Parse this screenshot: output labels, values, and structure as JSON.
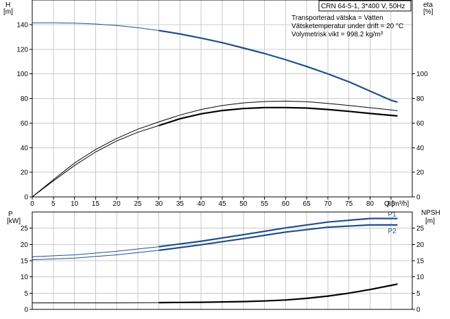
{
  "colors": {
    "blue": "#1f4e8c",
    "black": "#000000",
    "grid": "#c8c8c8"
  },
  "title_box": "CRN 64-5-1, 3*400 V, 50Hz",
  "conditions": [
    "Transporterad vätska = Vatten",
    "Vätsketemperatur under drift = 20 °C",
    "Volymetrisk vikt = 998.2 kg/m³"
  ],
  "chart_data": [
    {
      "type": "line",
      "panel": "upper",
      "xlabel": "Q [m³/h]",
      "ylabel_left": "H",
      "ylabel_left_unit": "[m]",
      "ylabel_right": "eta",
      "ylabel_right_unit": "[%]",
      "xlim": [
        0,
        90
      ],
      "ylim": [
        0,
        160
      ],
      "x_ticks": [
        0,
        5,
        10,
        15,
        20,
        25,
        30,
        35,
        40,
        45,
        50,
        55,
        60,
        65,
        70,
        75,
        80,
        85
      ],
      "y_ticks_left": [
        0,
        20,
        40,
        60,
        80,
        100,
        120,
        140
      ],
      "y_ticks_right": [
        0,
        20,
        40,
        60,
        80,
        100
      ],
      "grid": true,
      "series": [
        {
          "kind": "H",
          "color": "blue",
          "x": [
            0,
            5,
            10,
            15,
            20,
            25,
            30,
            35,
            40,
            45,
            50,
            55,
            60,
            65,
            70,
            75,
            80,
            85,
            86.5
          ],
          "values": [
            141.5,
            141.5,
            141.2,
            140.5,
            139.3,
            137.5,
            135.2,
            132.4,
            129.0,
            125.3,
            121.0,
            116.5,
            111.5,
            106.0,
            100.0,
            93.5,
            86.0,
            78.5,
            77.0
          ],
          "style": "thick",
          "start_thin_until": 30
        },
        {
          "kind": "eta",
          "color": "black",
          "x": [
            0,
            5,
            10,
            15,
            20,
            25,
            30,
            35,
            40,
            45,
            50,
            55,
            60,
            65,
            70,
            75,
            80,
            85,
            86.5
          ],
          "values": [
            0,
            14,
            27.5,
            38.5,
            47.5,
            55.0,
            61.0,
            66.5,
            71.0,
            74.3,
            76.4,
            77.5,
            77.8,
            77.3,
            76.0,
            74.3,
            72.5,
            70.7,
            70.0
          ],
          "style": "thin"
        },
        {
          "kind": "eta",
          "color": "black",
          "x": [
            0,
            5,
            10,
            15,
            20,
            25,
            30,
            35,
            40,
            45,
            50,
            55,
            60,
            65,
            70,
            75,
            80,
            85,
            86.5
          ],
          "values": [
            0,
            13,
            25.5,
            36.5,
            45.5,
            52.5,
            58.0,
            63.5,
            67.5,
            70.2,
            71.8,
            72.6,
            72.6,
            72.2,
            71.0,
            69.5,
            67.8,
            66.3,
            65.8
          ],
          "style": "thick",
          "start_thin_until": 30
        }
      ]
    },
    {
      "type": "line",
      "panel": "lower",
      "ylabel_left": "P",
      "ylabel_left_unit": "[kW]",
      "ylabel_right": "NPSH",
      "ylabel_right_unit": "[m]",
      "xlim": [
        0,
        90
      ],
      "ylim": [
        0,
        30
      ],
      "y_ticks_left": [
        0,
        5,
        10,
        15,
        20,
        25
      ],
      "y_ticks_right": [
        0,
        5,
        10,
        15,
        20,
        25
      ],
      "grid": true,
      "series": [
        {
          "name": "P1",
          "color": "blue",
          "x": [
            0,
            10,
            20,
            30,
            40,
            50,
            60,
            70,
            80,
            86.5
          ],
          "values": [
            16.2,
            16.8,
            17.9,
            19.3,
            21.0,
            23.0,
            25.1,
            26.9,
            28.0,
            28.0
          ],
          "style": "thick",
          "start_thin_until": 30
        },
        {
          "name": "P2",
          "color": "blue",
          "x": [
            0,
            10,
            20,
            30,
            40,
            50,
            60,
            70,
            80,
            86.5
          ],
          "values": [
            15.3,
            15.8,
            16.8,
            18.2,
            19.9,
            21.8,
            23.8,
            25.3,
            26.0,
            26.0
          ],
          "style": "thick",
          "start_thin_until": 30
        },
        {
          "kind": "NPSH",
          "color": "black",
          "x": [
            0,
            10,
            20,
            30,
            40,
            50,
            55,
            60,
            65,
            70,
            75,
            80,
            85,
            86.5
          ],
          "values": [
            2.0,
            2.0,
            2.0,
            2.1,
            2.2,
            2.4,
            2.6,
            2.9,
            3.4,
            4.1,
            5.0,
            6.1,
            7.4,
            7.8
          ],
          "style": "thick",
          "start_thin_until": 30
        }
      ]
    }
  ]
}
